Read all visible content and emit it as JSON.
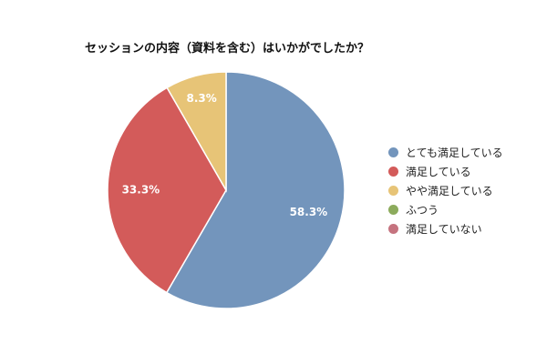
{
  "chart_data": {
    "type": "pie",
    "title": "セッションの内容（資料を含む）はいかがでしたか？",
    "categories": [
      "とても満足している",
      "満足している",
      "やや満足している",
      "ふつう",
      "満足していない"
    ],
    "values": [
      58.3,
      33.3,
      8.3,
      0,
      0
    ],
    "value_labels": [
      "58.3%",
      "33.3%",
      "8.3%",
      "",
      ""
    ],
    "colors": [
      "#7395BC",
      "#D35B5A",
      "#E7C477",
      "#8CAB5C",
      "#C5737F"
    ],
    "legend_position": "right"
  }
}
